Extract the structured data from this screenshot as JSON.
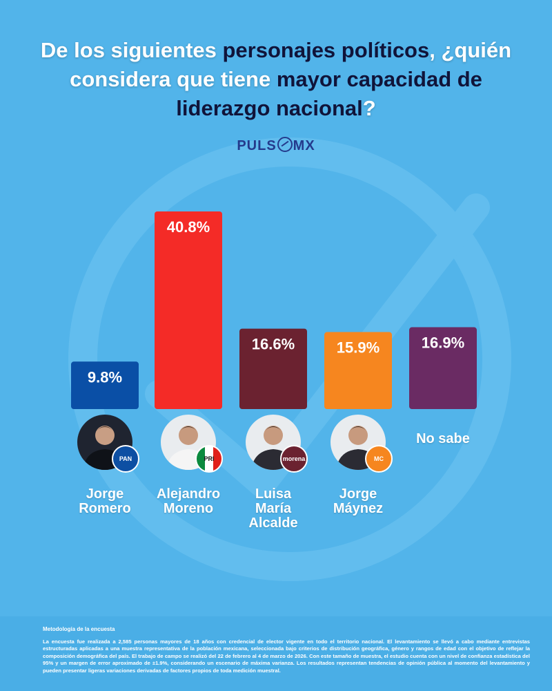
{
  "title": {
    "part1": "De los siguientes ",
    "hl1": "personajes políticos",
    "part2": ", ¿quién considera que tiene ",
    "hl2": "mayor capacidad de liderazgo nacional",
    "part3": "?"
  },
  "logo": {
    "left": "PULS",
    "right": "MX"
  },
  "chart_data": {
    "type": "bar",
    "title": "De los siguientes personajes políticos, ¿quién considera que tiene mayor capacidad de liderazgo nacional?",
    "categories": [
      "Jorge Romero",
      "Alejandro Moreno",
      "Luisa María Alcalde",
      "Jorge Máynez",
      "No sabe"
    ],
    "values": [
      9.8,
      40.8,
      16.6,
      15.9,
      16.9
    ],
    "value_labels": [
      "9.8%",
      "40.8%",
      "16.6%",
      "15.9%",
      "16.9%"
    ],
    "colors": [
      "#0a4fa6",
      "#f42b27",
      "#6b2230",
      "#f6861f",
      "#6a2b63"
    ],
    "ylim": [
      0,
      42
    ],
    "xlabel": "",
    "ylabel": ""
  },
  "candidates": [
    {
      "name_lines": [
        "Jorge",
        "Romero"
      ],
      "party": "PAN",
      "party_color": "#0d4fa3"
    },
    {
      "name_lines": [
        "Alejandro",
        "Moreno"
      ],
      "party": "PRI",
      "party_color": "#ffffff"
    },
    {
      "name_lines": [
        "Luisa",
        "María",
        "Alcalde"
      ],
      "party": "morena",
      "party_color": "#6b2230"
    },
    {
      "name_lines": [
        "Jorge",
        "Máynez"
      ],
      "party": "MC",
      "party_color": "#f6861f"
    },
    {
      "name_lines": [
        "No sabe"
      ],
      "party": "",
      "party_color": ""
    }
  ],
  "methodology": {
    "title": "Metodología de la encuesta",
    "text": "La encuesta fue realizada a 2,585 personas mayores de 18 años con credencial de elector vigente en todo el territorio nacional. El levantamiento se llevó a cabo mediante entrevistas estructuradas aplicadas a una muestra representativa de la población mexicana, seleccionada bajo criterios de distribución geográfica, género y rangos de edad con el objetivo de reflejar la composición demográfica del país. El trabajo de campo se realizó del 22 de febrero al 4 de marzo de 2026. Con este tamaño de muestra, el estudio cuenta con un nivel de confianza estadística del 95% y un margen de error aproximado de ±1.9%, considerando un escenario de máxima varianza. Los resultados representan tendencias de opinión pública al momento del levantamiento y pueden presentar ligeras variaciones derivadas de factores propios de toda medición muestral."
  }
}
